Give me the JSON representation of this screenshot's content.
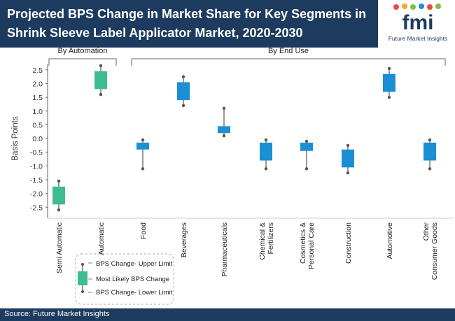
{
  "header": {
    "title": "Projected BPS Change in Market Share for Key Segments in Shrink Sleeve Label Applicator Market, 2020-2030",
    "logo_text": "fmi",
    "logo_tagline": "Future Market Insights"
  },
  "footer": {
    "source": "Source: Future Market Insights"
  },
  "colors": {
    "band": "#1d3a5f",
    "automation": "#3dbd8e",
    "end_use": "#1a8fd4",
    "whisker": "#555555"
  },
  "chart_data": {
    "type": "boxplot",
    "ylabel": "Basis Points",
    "ylim": [
      -2.9,
      2.7
    ],
    "yticks": [
      2.5,
      2.0,
      1.5,
      1.0,
      0.5,
      0.0,
      -0.5,
      -1.0,
      -1.5,
      -2.0,
      -2.5
    ],
    "ytick_labels": [
      "2.5",
      "2.0",
      "1.5",
      "1.0",
      "0.5",
      "0.0",
      "-0.5",
      "-1.0",
      "-1.5",
      "-2.0",
      "-2.5"
    ],
    "groups": [
      {
        "label": "By Automation",
        "color": "#3dbd8e",
        "categories": [
          "Semi Automatic",
          "Automatic"
        ]
      },
      {
        "label": "By End Use",
        "color": "#1a8fd4",
        "categories": [
          "Food",
          "Beverages",
          "Pharmaceuticals",
          "Chemical & Fertilizers",
          "Cosmetics & Personal Care",
          "Construction",
          "Automotive",
          "Other Consumer Goods"
        ]
      }
    ],
    "category_label_lines": [
      [
        "Semi Automatic"
      ],
      [
        "Automatic"
      ],
      [
        "Food"
      ],
      [
        "Beverages"
      ],
      [
        "Pharmaceuticals"
      ],
      [
        "Chemical &",
        "Fertilizers"
      ],
      [
        "Cosmetics &",
        "Personal Care"
      ],
      [
        "Construction"
      ],
      [
        "Automotive"
      ],
      [
        "Other",
        "Consumer Goods"
      ]
    ],
    "series": [
      {
        "category": "Semi Automatic",
        "upper": -1.55,
        "box_high": -1.75,
        "box_low": -2.4,
        "lower": -2.6
      },
      {
        "category": "Automatic",
        "upper": 2.65,
        "box_high": 2.45,
        "box_low": 1.8,
        "lower": 1.6
      },
      {
        "category": "Food",
        "upper": -0.05,
        "box_high": -0.15,
        "box_low": -0.4,
        "lower": -1.1
      },
      {
        "category": "Beverages",
        "upper": 2.25,
        "box_high": 2.05,
        "box_low": 1.4,
        "lower": 1.2
      },
      {
        "category": "Pharmaceuticals",
        "upper": 1.1,
        "box_high": 0.45,
        "box_low": 0.2,
        "lower": 0.1
      },
      {
        "category": "Chemical & Fertilizers",
        "upper": -0.05,
        "box_high": -0.15,
        "box_low": -0.8,
        "lower": -1.1
      },
      {
        "category": "Cosmetics & Personal Care",
        "upper": -0.1,
        "box_high": -0.15,
        "box_low": -0.45,
        "lower": -1.1
      },
      {
        "category": "Construction",
        "upper": -0.25,
        "box_high": -0.4,
        "box_low": -1.05,
        "lower": -1.25
      },
      {
        "category": "Automotive",
        "upper": 2.55,
        "box_high": 2.35,
        "box_low": 1.7,
        "lower": 1.5
      },
      {
        "category": "Other Consumer Goods",
        "upper": -0.05,
        "box_high": -0.15,
        "box_low": -0.8,
        "lower": -1.1
      }
    ],
    "legend": {
      "upper_label": "BPS Change- Upper Limit",
      "box_label": "Most Likely BPS Change",
      "lower_label": "BPS Change- Lower Limit"
    }
  }
}
